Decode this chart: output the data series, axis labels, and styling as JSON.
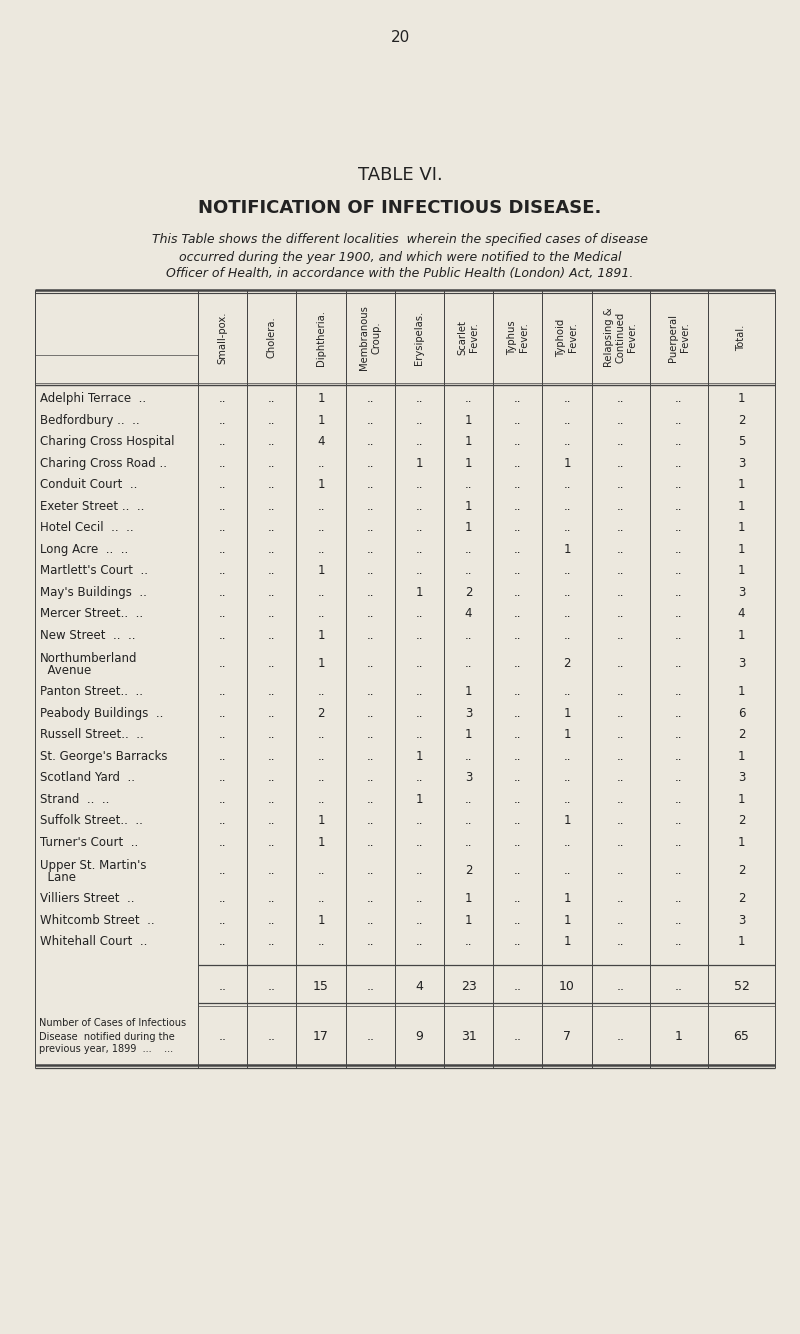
{
  "page_number": "20",
  "title1": "TABLE VI.",
  "title2": "NOTIFICATION OF INFECTIOUS DISEASE.",
  "subtitle_lines": [
    "This Table shows the different localities  wherein the specified cases of disease",
    "occurred during the year 1900, and which were notified to the Medical",
    "Officer of Health, in accordance with the Public Health (London) Act, 1891."
  ],
  "col_headers": [
    "Small-pox.",
    "Cholera.",
    "Diphtheria.",
    "Membranous\nCroup.",
    "Erysipelas.",
    "Scarlet\nFever.",
    "Typhus\nFever.",
    "Typhoid\nFever.",
    "Relapsing &\nContinued\nFever.",
    "Puerperal\nFever.",
    "Total."
  ],
  "rows": [
    {
      "loc": "Adelphi Terrace  ..",
      "vals": [
        "..",
        "..",
        "1",
        "..",
        "..",
        "..",
        "..",
        "..",
        "..",
        "..",
        "1"
      ]
    },
    {
      "loc": "Bedfordbury ..  ..",
      "vals": [
        "..",
        "..",
        "1",
        "..",
        "..",
        "1",
        "..",
        "..",
        "..",
        "..",
        "2"
      ]
    },
    {
      "loc": "Charing Cross Hospital",
      "vals": [
        "..",
        "..",
        "4",
        "..",
        "..",
        "1",
        "..",
        "..",
        "..",
        "..",
        "5"
      ]
    },
    {
      "loc": "Charing Cross Road ..",
      "vals": [
        "..",
        "..",
        "..",
        "..",
        "1",
        "1",
        "..",
        "1",
        "..",
        "..",
        "3"
      ]
    },
    {
      "loc": "Conduit Court  ..",
      "vals": [
        "..",
        "..",
        "1",
        "..",
        "..",
        "..",
        "..",
        "..",
        "..",
        "..",
        "1"
      ]
    },
    {
      "loc": "Exeter Street ..  ..",
      "vals": [
        "..",
        "..",
        "..",
        "..",
        "..",
        "1",
        "..",
        "..",
        "..",
        "..",
        "1"
      ]
    },
    {
      "loc": "Hotel Cecil  ..  ..",
      "vals": [
        "..",
        "..",
        "..",
        "..",
        "..",
        "1",
        "..",
        "..",
        "..",
        "..",
        "1"
      ]
    },
    {
      "loc": "Long Acre  ..  ..",
      "vals": [
        "..",
        "..",
        "..",
        "..",
        "..",
        "..",
        "..",
        "1",
        "..",
        "..",
        "1"
      ]
    },
    {
      "loc": "Martlett's Court  ..",
      "vals": [
        "..",
        "..",
        "1",
        "..",
        "..",
        "..",
        "..",
        "..",
        "..",
        "..",
        "1"
      ]
    },
    {
      "loc": "May's Buildings  ..",
      "vals": [
        "..",
        "..",
        "..",
        "..",
        "1",
        "2",
        "..",
        "..",
        "..",
        "..",
        "3"
      ]
    },
    {
      "loc": "Mercer Street..  ..",
      "vals": [
        "..",
        "..",
        "..",
        "..",
        "..",
        "4",
        "..",
        "..",
        "..",
        "..",
        "4"
      ]
    },
    {
      "loc": "New Street  ..  ..",
      "vals": [
        "..",
        "..",
        "1",
        "..",
        "..",
        "..",
        "..",
        "..",
        "..",
        "..",
        "1"
      ]
    },
    {
      "loc": "Northumberland",
      "loc2": "  Avenue",
      "vals": [
        "..",
        "..",
        "1",
        "..",
        "..",
        "..",
        "..",
        "2",
        "..",
        "..",
        "3"
      ]
    },
    {
      "loc": "Panton Street..  ..",
      "vals": [
        "..",
        "..",
        "..",
        "..",
        "..",
        "1",
        "..",
        "..",
        "..",
        "..",
        "1"
      ]
    },
    {
      "loc": "Peabody Buildings  ..",
      "vals": [
        "..",
        "..",
        "2",
        "..",
        "..",
        "3",
        "..",
        "1",
        "..",
        "..",
        "6"
      ]
    },
    {
      "loc": "Russell Street..  ..",
      "vals": [
        "..",
        "..",
        "..",
        "..",
        "..",
        "1",
        "..",
        "1",
        "..",
        "..",
        "2"
      ]
    },
    {
      "loc": "St. George's Barracks",
      "vals": [
        "..",
        "..",
        "..",
        "..",
        "1",
        "..",
        "..",
        "..",
        "..",
        "..",
        "1"
      ]
    },
    {
      "loc": "Scotland Yard  ..",
      "vals": [
        "..",
        "..",
        "..",
        "..",
        "..",
        "3",
        "..",
        "..",
        "..",
        "..",
        "3"
      ]
    },
    {
      "loc": "Strand  ..  ..",
      "vals": [
        "..",
        "..",
        "..",
        "..",
        "1",
        "..",
        "..",
        "..",
        "..",
        "..",
        "1"
      ]
    },
    {
      "loc": "Suffolk Street..  ..",
      "vals": [
        "..",
        "..",
        "1",
        "..",
        "..",
        "..",
        "..",
        "1",
        "..",
        "..",
        "2"
      ]
    },
    {
      "loc": "Turner's Court  ..",
      "vals": [
        "..",
        "..",
        "1",
        "..",
        "..",
        "..",
        "..",
        "..",
        "..",
        "..",
        "1"
      ]
    },
    {
      "loc": "Upper St. Martin's",
      "loc2": "  Lane",
      "vals": [
        "..",
        "..",
        "..",
        "..",
        "..",
        "2",
        "..",
        "..",
        "..",
        "..",
        "2"
      ]
    },
    {
      "loc": "Villiers Street  ..",
      "vals": [
        "..",
        "..",
        "..",
        "..",
        "..",
        "1",
        "..",
        "1",
        "..",
        "..",
        "2"
      ]
    },
    {
      "loc": "Whitcomb Street  ..",
      "vals": [
        "..",
        "..",
        "1",
        "..",
        "..",
        "1",
        "..",
        "1",
        "..",
        "..",
        "3"
      ]
    },
    {
      "loc": "Whitehall Court  ..",
      "vals": [
        "..",
        "..",
        "..",
        "..",
        "..",
        "..",
        "..",
        "1",
        "..",
        "..",
        "1"
      ]
    }
  ],
  "totals_vals": [
    "..",
    "..",
    "15",
    "..",
    "4",
    "23",
    "..",
    "10",
    "..",
    "..",
    "52"
  ],
  "prev_label": [
    "Number of Cases of Infectious",
    "Disease  notified during the",
    "previous year, 1899  ...    ..."
  ],
  "prev_vals": [
    "..",
    "..",
    "17",
    "..",
    "9",
    "31",
    "..",
    "7",
    "..",
    "1",
    "65"
  ],
  "bg_color": "#ece8de",
  "text_color": "#222222",
  "line_color": "#444444"
}
